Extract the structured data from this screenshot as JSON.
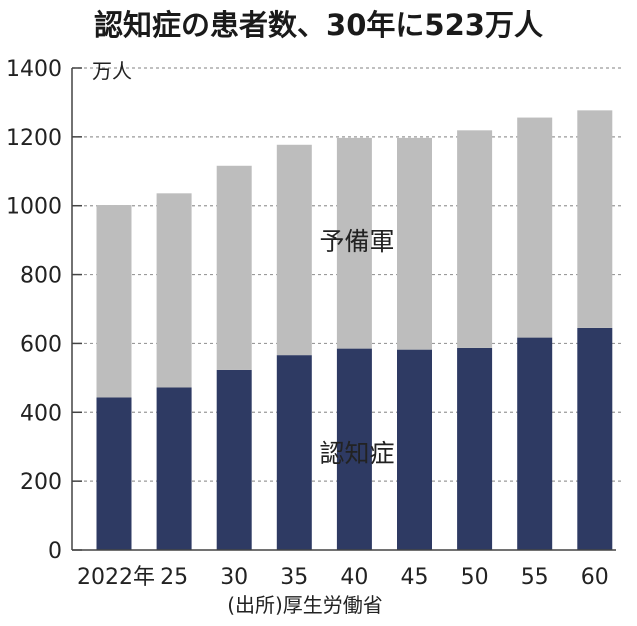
{
  "chart_data": {
    "type": "bar",
    "stacked": true,
    "title": "認知症の患者数、30年に523万人",
    "unit": "万人",
    "source": "(出所)厚生労働省",
    "categories": [
      "2022年",
      "25",
      "30",
      "35",
      "40",
      "45",
      "50",
      "55",
      "60"
    ],
    "series": [
      {
        "name": "認知症",
        "color": "#2e3a63",
        "values": [
          443,
          472,
          523,
          566,
          585,
          582,
          587,
          617,
          645
        ]
      },
      {
        "name": "予備軍",
        "color": "#bdbdbd",
        "values": [
          559,
          564,
          593,
          611,
          612,
          615,
          632,
          639,
          632
        ]
      }
    ],
    "ylim": [
      0,
      1400
    ],
    "yticks": [
      0,
      200,
      400,
      600,
      800,
      1000,
      1200,
      1400
    ],
    "grid": "dashed horizontal"
  }
}
